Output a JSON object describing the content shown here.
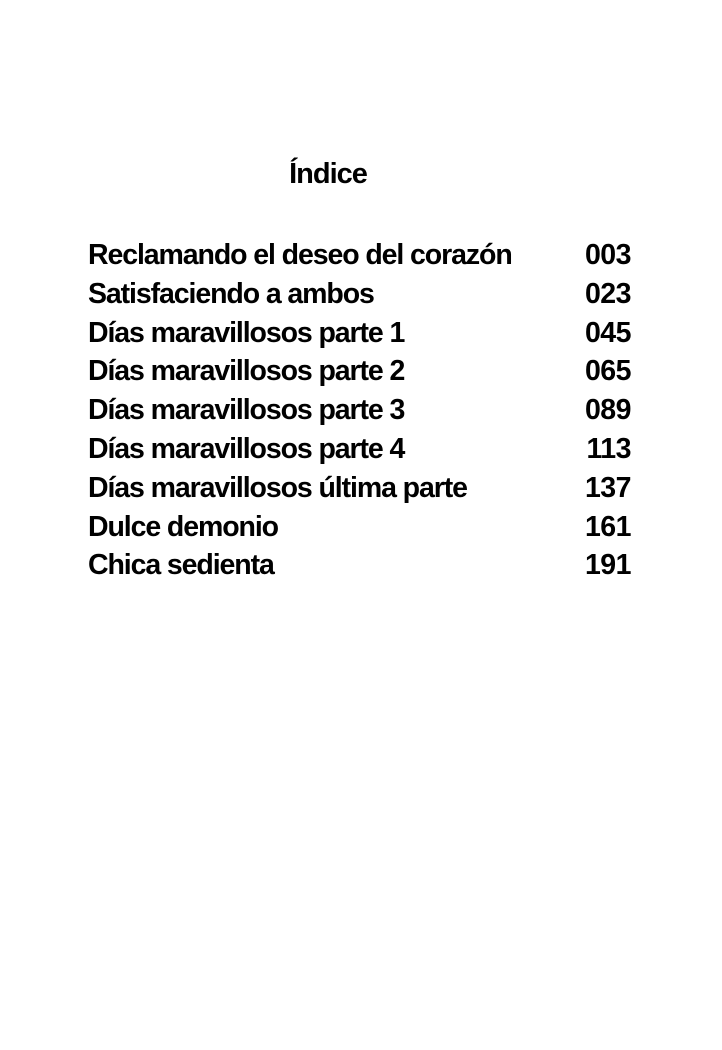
{
  "title": "Índice",
  "entries": [
    {
      "label": "Reclamando el deseo del corazón",
      "page": "003"
    },
    {
      "label": "Satisfaciendo a ambos",
      "page": "023"
    },
    {
      "label": "Días maravillosos parte 1",
      "page": "045"
    },
    {
      "label": "Días maravillosos parte 2",
      "page": "065"
    },
    {
      "label": "Días maravillosos parte 3",
      "page": "089"
    },
    {
      "label": "Días maravillosos parte 4",
      "page": "113"
    },
    {
      "label": "Días maravillosos última parte",
      "page": "137"
    },
    {
      "label": "Dulce demonio",
      "page": "161"
    },
    {
      "label": "Chica sedienta",
      "page": "191"
    }
  ]
}
